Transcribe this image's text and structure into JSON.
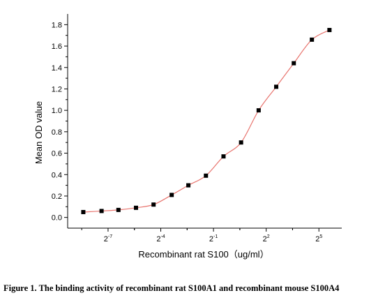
{
  "chart_data": {
    "type": "scatter",
    "title": "",
    "xlabel": "Recombinant rat  S100（ug/ml）",
    "ylabel": "Mean OD value",
    "x_scale": "log2",
    "y_ticks": [
      "0.0",
      "0.2",
      "0.4",
      "0.6",
      "0.8",
      "1.0",
      "1.2",
      "1.4",
      "1.6",
      "1.8"
    ],
    "ylim": [
      -0.1,
      1.9
    ],
    "x_ticks": [
      {
        "base": "2",
        "exp": "-7",
        "value": -7
      },
      {
        "base": "2",
        "exp": "-4",
        "value": -4
      },
      {
        "base": "2",
        "exp": "-1",
        "value": -1
      },
      {
        "base": "2",
        "exp": "2",
        "value": 2
      },
      {
        "base": "2",
        "exp": "5",
        "value": 5
      }
    ],
    "xlim_log2": [
      -9.3,
      6.3
    ],
    "fit_line": true,
    "fit_color": "#e8746e",
    "point_color": "#000000",
    "series": [
      {
        "x_log2": [
          -8.41,
          -7.37,
          -6.41,
          -5.41,
          -4.41,
          -3.38,
          -2.43,
          -1.43,
          -0.43,
          0.57,
          1.57,
          2.57,
          3.57,
          4.6,
          5.6
        ],
        "values": [
          0.05,
          0.06,
          0.07,
          0.09,
          0.12,
          0.21,
          0.3,
          0.39,
          0.57,
          0.7,
          1.0,
          1.22,
          1.44,
          1.66,
          1.75
        ]
      }
    ]
  },
  "caption": "Figure 1. The binding activity of recombinant rat S100A1 and recombinant mouse S100A4"
}
